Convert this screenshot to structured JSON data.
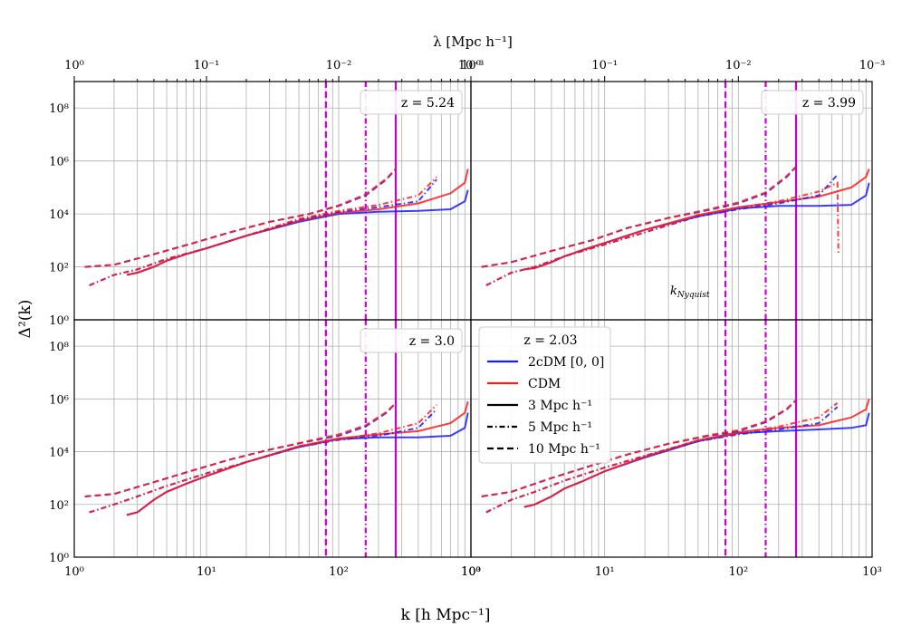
{
  "figure": {
    "xlabel": "k [h Mpc⁻¹]",
    "ylabel": "Δ²(k)",
    "top_xlabel": "λ [Mpc h⁻¹]",
    "nyquist_label": "k",
    "nyquist_sub": "Nyquist",
    "x_tick_labels": [
      "10⁰",
      "10¹",
      "10²",
      "10³"
    ],
    "top_tick_labels": [
      "10⁰",
      "10⁻¹",
      "10⁻²",
      "10⁻³"
    ],
    "y_tick_labels": [
      "10⁰",
      "10²",
      "10⁴",
      "10⁶",
      "10⁸"
    ]
  },
  "legend": {
    "title": "z = 2.03",
    "entries": [
      {
        "label": "2cDM [0, 0]",
        "color": "#1a1aff",
        "dash": "solid"
      },
      {
        "label": "CDM",
        "color": "#ff1a1a",
        "dash": "solid"
      },
      {
        "label": "3 Mpc h⁻¹",
        "color": "#000000",
        "dash": "solid"
      },
      {
        "label": "5 Mpc h⁻¹",
        "color": "#000000",
        "dash": "dashdot"
      },
      {
        "label": "10 Mpc h⁻¹",
        "color": "#000000",
        "dash": "dashed"
      }
    ]
  },
  "colors": {
    "twocdm": "#1a1aff",
    "cdm": "#ff1a1a",
    "nyquist": "#cc00cc"
  },
  "chart_data": [
    {
      "type": "line",
      "panel": "top-left",
      "redshift_label": "z = 5.24",
      "xscale": "log",
      "yscale": "log",
      "xlim": [
        1,
        1000
      ],
      "ylim": [
        1,
        1000000000.0
      ],
      "nyquist_k": [
        80,
        160,
        270
      ],
      "series": [
        {
          "name": "2cDM [0, 0], 3 Mpc h⁻¹",
          "style": "solid",
          "x": [
            2.5,
            3,
            4,
            5,
            7,
            10,
            20,
            50,
            100,
            200,
            400,
            700,
            900,
            950
          ],
          "y": [
            50,
            60,
            100,
            170,
            300,
            500,
            1500,
            5000,
            10000,
            12000,
            13000,
            15000,
            30000,
            80000
          ]
        },
        {
          "name": "CDM, 3 Mpc h⁻¹",
          "style": "solid",
          "x": [
            2.5,
            3,
            4,
            5,
            7,
            10,
            20,
            50,
            100,
            200,
            400,
            700,
            900,
            950
          ],
          "y": [
            50,
            60,
            100,
            170,
            300,
            500,
            1500,
            5500,
            11000,
            15000,
            25000,
            60000,
            150000,
            500000
          ]
        },
        {
          "name": "2cDM [0, 0], 5 Mpc h⁻¹",
          "style": "dashdot",
          "x": [
            1.3,
            2,
            3,
            5,
            10,
            20,
            50,
            100,
            200,
            400,
            550
          ],
          "y": [
            20,
            50,
            80,
            200,
            500,
            1500,
            6000,
            12000,
            18000,
            30000,
            200000
          ]
        },
        {
          "name": "CDM, 5 Mpc h⁻¹",
          "style": "dashdot",
          "x": [
            1.3,
            2,
            3,
            5,
            10,
            20,
            50,
            100,
            200,
            400,
            550
          ],
          "y": [
            20,
            50,
            80,
            200,
            500,
            1500,
            6500,
            13000,
            22000,
            50000,
            250000
          ]
        },
        {
          "name": "2cDM [0, 0], 10 Mpc h⁻¹",
          "style": "dashed",
          "x": [
            1.2,
            2,
            4,
            8,
            15,
            30,
            60,
            100,
            160,
            230,
            270
          ],
          "y": [
            100,
            120,
            300,
            800,
            2000,
            5000,
            10000,
            20000,
            50000,
            200000,
            500000
          ]
        },
        {
          "name": "CDM, 10 Mpc h⁻¹",
          "style": "dashed",
          "x": [
            1.2,
            2,
            4,
            8,
            15,
            30,
            60,
            100,
            160,
            230,
            270
          ],
          "y": [
            100,
            120,
            300,
            800,
            2000,
            5000,
            10000,
            21000,
            55000,
            220000,
            500000
          ]
        }
      ]
    },
    {
      "type": "line",
      "panel": "top-right",
      "redshift_label": "z = 3.99",
      "xscale": "log",
      "yscale": "log",
      "xlim": [
        1,
        1000
      ],
      "ylim": [
        1,
        1000000000.0
      ],
      "nyquist_k": [
        80,
        160,
        270
      ],
      "series": [
        {
          "name": "2cDM [0, 0], 3 Mpc h⁻¹",
          "style": "solid",
          "x": [
            2.5,
            3,
            4,
            5,
            7,
            10,
            20,
            50,
            100,
            200,
            400,
            700,
            900,
            950
          ],
          "y": [
            80,
            90,
            150,
            250,
            450,
            800,
            2500,
            8000,
            16000,
            20000,
            20000,
            22000,
            50000,
            150000
          ]
        },
        {
          "name": "CDM, 3 Mpc h⁻¹",
          "style": "solid",
          "x": [
            2.5,
            3,
            4,
            5,
            7,
            10,
            20,
            50,
            100,
            200,
            400,
            700,
            900,
            950
          ],
          "y": [
            80,
            90,
            150,
            250,
            450,
            800,
            2500,
            9000,
            18000,
            28000,
            45000,
            100000,
            250000,
            500000
          ]
        },
        {
          "name": "2cDM [0, 0], 5 Mpc h⁻¹",
          "style": "dashdot",
          "x": [
            1.3,
            2,
            3,
            5,
            10,
            20,
            50,
            100,
            200,
            400,
            550
          ],
          "y": [
            20,
            60,
            100,
            250,
            700,
            2000,
            8000,
            15000,
            25000,
            50000,
            300000
          ]
        },
        {
          "name": "CDM, 5 Mpc h⁻¹",
          "style": "dashdot",
          "x": [
            1.3,
            2,
            3,
            5,
            10,
            20,
            50,
            100,
            200,
            400,
            550,
            560
          ],
          "y": [
            20,
            60,
            100,
            250,
            700,
            2000,
            9000,
            17000,
            30000,
            70000,
            150000,
            300
          ]
        },
        {
          "name": "2cDM [0, 0], 10 Mpc h⁻¹",
          "style": "dashed",
          "x": [
            1.2,
            2,
            4,
            8,
            15,
            30,
            60,
            100,
            160,
            230,
            270
          ],
          "y": [
            100,
            150,
            400,
            1000,
            3000,
            7000,
            14000,
            25000,
            60000,
            250000,
            600000
          ]
        },
        {
          "name": "CDM, 10 Mpc h⁻¹",
          "style": "dashed",
          "x": [
            1.2,
            2,
            4,
            8,
            15,
            30,
            60,
            100,
            160,
            230,
            270
          ],
          "y": [
            100,
            150,
            400,
            1000,
            3000,
            7000,
            15000,
            27000,
            65000,
            270000,
            600000
          ]
        }
      ]
    },
    {
      "type": "line",
      "panel": "bottom-left",
      "redshift_label": "z = 3.0",
      "xscale": "log",
      "yscale": "log",
      "xlim": [
        1,
        1000
      ],
      "ylim": [
        1,
        1000000000.0
      ],
      "nyquist_k": [
        80,
        160,
        270
      ],
      "series": [
        {
          "name": "2cDM [0, 0], 3 Mpc h⁻¹",
          "style": "solid",
          "x": [
            2.5,
            3,
            4,
            5,
            7,
            10,
            20,
            50,
            100,
            200,
            400,
            700,
            900,
            950
          ],
          "y": [
            40,
            50,
            150,
            300,
            600,
            1200,
            4000,
            15000,
            30000,
            35000,
            35000,
            40000,
            80000,
            300000
          ]
        },
        {
          "name": "CDM, 3 Mpc h⁻¹",
          "style": "solid",
          "x": [
            2.5,
            3,
            4,
            5,
            7,
            10,
            20,
            50,
            100,
            200,
            400,
            700,
            900,
            950
          ],
          "y": [
            40,
            50,
            150,
            300,
            600,
            1200,
            4000,
            16000,
            32000,
            45000,
            60000,
            120000,
            300000,
            800000
          ]
        },
        {
          "name": "2cDM [0, 0], 5 Mpc h⁻¹",
          "style": "dashdot",
          "x": [
            1.3,
            2,
            3,
            5,
            10,
            20,
            50,
            100,
            200,
            400,
            550
          ],
          "y": [
            50,
            100,
            200,
            500,
            1500,
            4000,
            15000,
            28000,
            40000,
            80000,
            400000
          ]
        },
        {
          "name": "CDM, 5 Mpc h⁻¹",
          "style": "dashdot",
          "x": [
            1.3,
            2,
            3,
            5,
            10,
            20,
            50,
            100,
            200,
            400,
            550
          ],
          "y": [
            50,
            100,
            200,
            500,
            1500,
            4000,
            16000,
            30000,
            50000,
            120000,
            600000
          ]
        },
        {
          "name": "2cDM [0, 0], 10 Mpc h⁻¹",
          "style": "dashed",
          "x": [
            1.2,
            2,
            4,
            8,
            15,
            30,
            60,
            100,
            160,
            230,
            270
          ],
          "y": [
            200,
            250,
            700,
            2000,
            5000,
            12000,
            25000,
            40000,
            90000,
            300000,
            700000
          ]
        },
        {
          "name": "CDM, 10 Mpc h⁻¹",
          "style": "dashed",
          "x": [
            1.2,
            2,
            4,
            8,
            15,
            30,
            60,
            100,
            160,
            230,
            270
          ],
          "y": [
            200,
            250,
            700,
            2000,
            5000,
            12000,
            26000,
            45000,
            100000,
            320000,
            700000
          ]
        }
      ]
    },
    {
      "type": "line",
      "panel": "bottom-right",
      "redshift_label": "z = 2.03",
      "xscale": "log",
      "yscale": "log",
      "xlim": [
        1,
        1000
      ],
      "ylim": [
        1,
        1000000000.0
      ],
      "nyquist_k": [
        80,
        160,
        270
      ],
      "series": [
        {
          "name": "2cDM [0, 0], 3 Mpc h⁻¹",
          "style": "solid",
          "x": [
            2.5,
            3,
            4,
            5,
            7,
            10,
            20,
            50,
            100,
            200,
            400,
            700,
            900,
            950
          ],
          "y": [
            80,
            100,
            200,
            400,
            800,
            1800,
            6000,
            25000,
            50000,
            60000,
            70000,
            80000,
            100000,
            300000
          ]
        },
        {
          "name": "CDM, 3 Mpc h⁻¹",
          "style": "solid",
          "x": [
            2.5,
            3,
            4,
            5,
            7,
            10,
            20,
            50,
            100,
            200,
            400,
            700,
            900,
            950
          ],
          "y": [
            80,
            100,
            200,
            400,
            800,
            1800,
            6500,
            27000,
            55000,
            80000,
            100000,
            200000,
            400000,
            1000000
          ]
        },
        {
          "name": "2cDM [0, 0], 5 Mpc h⁻¹",
          "style": "dashdot",
          "x": [
            1.3,
            2,
            3,
            5,
            10,
            20,
            50,
            100,
            200,
            400,
            550
          ],
          "y": [
            50,
            150,
            300,
            800,
            2500,
            7000,
            25000,
            45000,
            70000,
            120000,
            500000
          ]
        },
        {
          "name": "CDM, 5 Mpc h⁻¹",
          "style": "dashdot",
          "x": [
            1.3,
            2,
            3,
            5,
            10,
            20,
            50,
            100,
            200,
            400,
            550
          ],
          "y": [
            50,
            150,
            300,
            800,
            2500,
            7000,
            27000,
            50000,
            90000,
            200000,
            700000
          ]
        },
        {
          "name": "2cDM [0, 0], 10 Mpc h⁻¹",
          "style": "dashed",
          "x": [
            1.2,
            2,
            4,
            8,
            15,
            30,
            60,
            100,
            160,
            230,
            270
          ],
          "y": [
            200,
            300,
            1000,
            3000,
            8000,
            20000,
            40000,
            60000,
            130000,
            400000,
            900000
          ]
        },
        {
          "name": "CDM, 10 Mpc h⁻¹",
          "style": "dashed",
          "x": [
            1.2,
            2,
            4,
            8,
            15,
            30,
            60,
            100,
            160,
            230,
            270
          ],
          "y": [
            200,
            300,
            1000,
            3000,
            8000,
            20000,
            42000,
            65000,
            140000,
            420000,
            900000
          ]
        }
      ]
    }
  ]
}
